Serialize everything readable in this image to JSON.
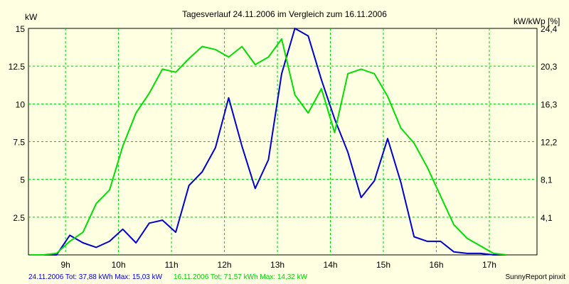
{
  "chart_data": {
    "type": "line",
    "title": "Tagesverlauf 24.11.2006 im Vergleich zum 16.11.2006",
    "ylabel": "kW",
    "ylabel_right": "kW/kWp [%]",
    "xlim": [
      8.3,
      17.9
    ],
    "ylim": [
      0,
      15
    ],
    "y_ticks": [
      "2.5",
      "5",
      "7.5",
      "10",
      "12.5",
      "15"
    ],
    "y_tick_values": [
      2.5,
      5,
      7.5,
      10,
      12.5,
      15
    ],
    "y2_ticks": [
      "4,1",
      "8,1",
      "12,2",
      "16,3",
      "20,3",
      "24,4"
    ],
    "x_ticks": [
      "9h",
      "10h",
      "11h",
      "12h",
      "13h",
      "14h",
      "15h",
      "16h",
      "17h"
    ],
    "x_tick_values": [
      9,
      10,
      11,
      12,
      13,
      14,
      15,
      16,
      17
    ],
    "grid": true,
    "series": [
      {
        "name": "24.11.2006",
        "color": "#0000cc",
        "x": [
          8.33,
          8.58,
          8.83,
          9.08,
          9.33,
          9.58,
          9.83,
          10.08,
          10.33,
          10.58,
          10.83,
          11.08,
          11.33,
          11.58,
          11.83,
          12.08,
          12.33,
          12.58,
          12.83,
          13.08,
          13.33,
          13.58,
          13.83,
          14.08,
          14.33,
          14.58,
          14.83,
          15.08,
          15.33,
          15.58,
          15.83,
          16.08,
          16.33,
          16.58,
          16.83,
          17.08,
          17.33
        ],
        "y": [
          0,
          0,
          0,
          1.3,
          0.8,
          0.5,
          0.9,
          1.7,
          0.8,
          2.1,
          2.3,
          1.5,
          4.6,
          5.5,
          7.1,
          10.4,
          7.2,
          4.4,
          6.3,
          12.0,
          15.0,
          14.5,
          11.6,
          9.0,
          6.8,
          3.8,
          4.9,
          7.7,
          4.8,
          1.2,
          0.9,
          0.9,
          0.2,
          0.1,
          0.1,
          0.0,
          0
        ]
      },
      {
        "name": "16.11.2006",
        "color": "#00dd00",
        "x": [
          8.33,
          8.58,
          8.83,
          9.08,
          9.33,
          9.58,
          9.83,
          10.08,
          10.33,
          10.58,
          10.83,
          11.08,
          11.33,
          11.58,
          11.83,
          12.08,
          12.33,
          12.58,
          12.83,
          13.08,
          13.33,
          13.58,
          13.83,
          14.08,
          14.33,
          14.58,
          14.83,
          15.08,
          15.33,
          15.58,
          15.83,
          16.08,
          16.33,
          16.58,
          16.83,
          17.08,
          17.33
        ],
        "y": [
          0,
          0,
          0.1,
          0.9,
          1.5,
          3.4,
          4.3,
          7.2,
          9.4,
          10.7,
          12.3,
          12.1,
          13.0,
          13.8,
          13.6,
          13.1,
          13.8,
          12.6,
          13.1,
          14.3,
          10.6,
          9.4,
          11.0,
          8.1,
          12.0,
          12.3,
          12.0,
          10.5,
          8.4,
          7.4,
          5.8,
          3.9,
          2.0,
          1.1,
          0.6,
          0.1,
          0
        ]
      }
    ],
    "footer": {
      "series1_summary": "24.11.2006 Tot: 37,88 kWh Max: 15,03 kW",
      "series2_summary": "16.11.2006 Tot: 71,57 kWh Max: 14,32 kW",
      "credit": "SunnyReport pinxit"
    }
  }
}
